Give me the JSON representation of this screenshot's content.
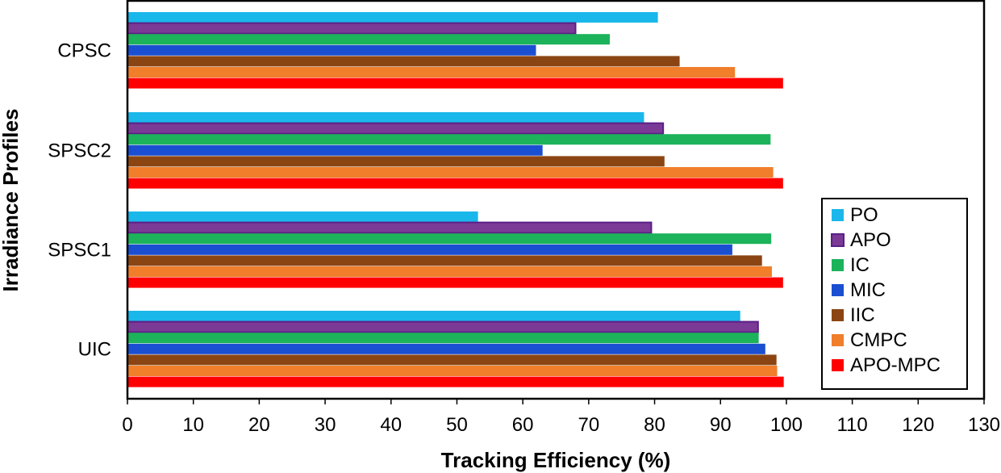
{
  "chart_data": {
    "type": "bar",
    "orientation": "horizontal",
    "title": "",
    "xlabel": "Tracking Efficiency (%)",
    "ylabel": "Irradiance Profiles",
    "xlim": [
      0,
      130
    ],
    "xticks": [
      "0",
      "10",
      "20",
      "30",
      "40",
      "50",
      "60",
      "70",
      "80",
      "90",
      "100",
      "110",
      "120",
      "130"
    ],
    "categories": [
      "CPSC",
      "SPSC2",
      "SPSC1",
      "UIC"
    ],
    "grid": false,
    "legend_position": "right",
    "series": [
      {
        "name": "PO",
        "color": "#1ab7ea",
        "border": "#1ab7ea",
        "values": [
          80.5,
          78.4,
          53.2,
          93.0
        ]
      },
      {
        "name": "APO",
        "color": "#7b3a96",
        "border": "#5b1f86",
        "values": [
          68.0,
          81.3,
          79.5,
          95.7
        ]
      },
      {
        "name": "IC",
        "color": "#1cb35a",
        "border": "#1cb35a",
        "values": [
          73.2,
          97.6,
          97.7,
          95.8
        ]
      },
      {
        "name": "MIC",
        "color": "#1b4fd1",
        "border": "#1b4fd1",
        "values": [
          62.0,
          63.0,
          91.8,
          96.8
        ]
      },
      {
        "name": "IIC",
        "color": "#8b4513",
        "border": "#8b4513",
        "values": [
          83.8,
          81.5,
          96.3,
          98.5
        ]
      },
      {
        "name": "CMPC",
        "color": "#f07e2a",
        "border": "#f07e2a",
        "values": [
          92.2,
          98.0,
          97.8,
          98.6
        ]
      },
      {
        "name": "APO-MPC",
        "color": "#ff0000",
        "border": "#ff0000",
        "values": [
          99.5,
          99.5,
          99.5,
          99.6
        ]
      }
    ]
  }
}
